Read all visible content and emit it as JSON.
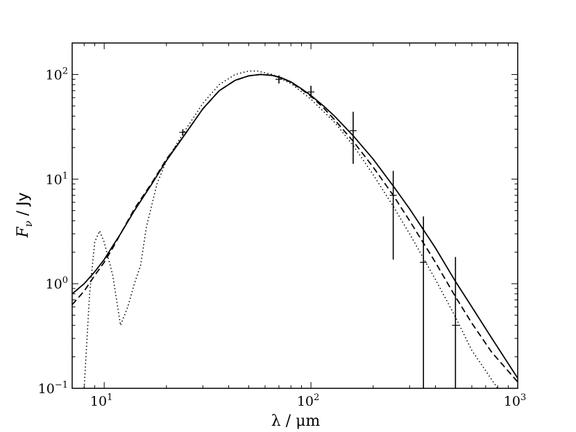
{
  "chart_data": {
    "type": "line",
    "xlabel": "λ / μm",
    "ylabel": "F_ν / Jy",
    "xscale": "log",
    "yscale": "log",
    "xlim": [
      7,
      1000
    ],
    "ylim": [
      0.1,
      200
    ],
    "x_ticks": [
      {
        "value": 10,
        "label": "10^1"
      },
      {
        "value": 100,
        "label": "10^2"
      },
      {
        "value": 1000,
        "label": "10^3"
      }
    ],
    "y_ticks": [
      {
        "value": 0.1,
        "label": "10^−1"
      },
      {
        "value": 1,
        "label": "10^0"
      },
      {
        "value": 10,
        "label": "10^1"
      },
      {
        "value": 100,
        "label": "10^2"
      }
    ],
    "grid": false,
    "legend": "none",
    "series": [
      {
        "style": "solid",
        "x": [
          7,
          8,
          9,
          10,
          11,
          12,
          14,
          17,
          20,
          24,
          30,
          36,
          43,
          50,
          57,
          65,
          72,
          80,
          90,
          100,
          115,
          130,
          160,
          200,
          250,
          300,
          400,
          500,
          600,
          750,
          1000
        ],
        "y": [
          0.8,
          1.0,
          1.3,
          1.7,
          2.3,
          3.0,
          5.0,
          9.0,
          15.0,
          25.0,
          47.0,
          70.0,
          88.0,
          97.0,
          100.0,
          98.0,
          93.0,
          85.0,
          73.0,
          63.0,
          50.0,
          40.0,
          26.0,
          15.5,
          8.6,
          5.2,
          2.2,
          1.05,
          0.6,
          0.3,
          0.125
        ]
      },
      {
        "style": "dashed",
        "x": [
          7,
          8,
          9,
          10,
          11,
          12,
          14,
          17,
          20,
          24,
          30,
          36,
          43,
          50,
          57,
          65,
          72,
          80,
          90,
          100,
          115,
          130,
          160,
          200,
          250,
          300,
          400,
          500,
          600,
          750,
          1000
        ],
        "y": [
          0.63,
          0.85,
          1.2,
          1.6,
          2.2,
          3.0,
          5.2,
          9.2,
          15.5,
          25.0,
          47.0,
          70.0,
          88.0,
          97.0,
          100.0,
          98.0,
          93.0,
          84.0,
          72.0,
          62.0,
          48.0,
          37.0,
          23.0,
          13.0,
          7.0,
          4.0,
          1.6,
          0.75,
          0.42,
          0.22,
          0.115
        ]
      },
      {
        "style": "dotted",
        "x": [
          8.0,
          8.5,
          9.0,
          9.5,
          10.0,
          11.0,
          12.0,
          13.0,
          14.0,
          15.0,
          16.0,
          18.0,
          20.0,
          24.0,
          30.0,
          36.0,
          43.0,
          50.0,
          55.0,
          65.0,
          80.0,
          100.0,
          130.0,
          160.0,
          200.0,
          250.0,
          300.0,
          400.0,
          500.0,
          600.0,
          800.0
        ],
        "y": [
          0.1,
          0.8,
          2.5,
          3.2,
          2.5,
          1.2,
          0.4,
          0.6,
          1.0,
          1.5,
          3.5,
          9.0,
          15.0,
          27.0,
          53.0,
          80.0,
          100.0,
          108.0,
          108.0,
          100.0,
          82.0,
          58.0,
          35.0,
          21.0,
          11.0,
          5.5,
          3.0,
          1.1,
          0.48,
          0.23,
          0.1
        ]
      }
    ],
    "measurements": [
      {
        "x": 24,
        "y": 28,
        "yerr_low": 26,
        "yerr_high": 30
      },
      {
        "x": 70,
        "y": 90,
        "yerr_low": 82,
        "yerr_high": 98
      },
      {
        "x": 100,
        "y": 68,
        "yerr_low": 60,
        "yerr_high": 78
      },
      {
        "x": 160,
        "y": 29,
        "yerr_low": 14,
        "yerr_high": 44
      },
      {
        "x": 250,
        "y": 7,
        "yerr_low": 1.7,
        "yerr_high": 12
      },
      {
        "x": 350,
        "y": 1.6,
        "yerr_low": 0.1,
        "yerr_high": 4.4
      },
      {
        "x": 500,
        "y": 0.4,
        "yerr_low": 0.1,
        "yerr_high": 1.8
      }
    ]
  }
}
